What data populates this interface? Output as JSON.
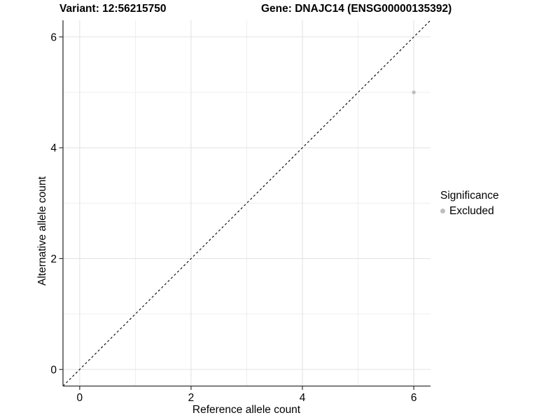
{
  "chart_data": {
    "type": "scatter",
    "title_left": "Variant: 12:56215750",
    "title_right": "Gene: DNAJC14 (ENSG00000135392)",
    "xlabel": "Reference allele count",
    "ylabel": "Alternative allele count",
    "xlim": [
      -0.3,
      6.3
    ],
    "ylim": [
      -0.3,
      6.3
    ],
    "x_major_ticks": [
      0,
      2,
      4,
      6
    ],
    "y_major_ticks": [
      0,
      2,
      4,
      6
    ],
    "x_minor_ticks": [
      1,
      3,
      5
    ],
    "y_minor_ticks": [
      1,
      3,
      5
    ],
    "grid": "on",
    "series": [
      {
        "name": "Excluded",
        "color": "#bebebe",
        "points": [
          {
            "x": 6,
            "y": 5
          }
        ]
      }
    ],
    "reference_line": {
      "type": "identity",
      "slope": 1,
      "intercept": 0,
      "style": "dashed",
      "color": "#000000"
    },
    "legend": {
      "title": "Significance",
      "position": "right",
      "entries": [
        {
          "label": "Excluded",
          "color": "#bebebe"
        }
      ]
    }
  },
  "colors": {
    "background": "#ffffff",
    "grid_major": "#e3e3e3",
    "grid_minor": "#eeeeee",
    "axis_line": "#333333",
    "tick_text": "#000000"
  }
}
